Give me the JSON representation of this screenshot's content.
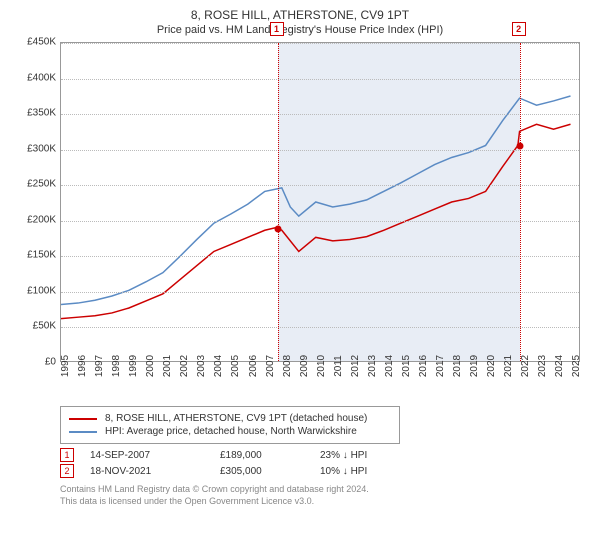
{
  "title": "8, ROSE HILL, ATHERSTONE, CV9 1PT",
  "subtitle": "Price paid vs. HM Land Registry's House Price Index (HPI)",
  "chart": {
    "type": "line",
    "background_color": "#ffffff",
    "shade_color": "#e8edf5",
    "grid_color": "#bbbbbb",
    "border_color": "#999999",
    "xlim": [
      1995,
      2025.5
    ],
    "ylim": [
      0,
      450000
    ],
    "ytick_step": 50000,
    "ytick_labels": [
      "£0",
      "£50K",
      "£100K",
      "£150K",
      "£200K",
      "£250K",
      "£300K",
      "£350K",
      "£400K",
      "£450K"
    ],
    "xticks": [
      1995,
      1996,
      1997,
      1998,
      1999,
      2000,
      2001,
      2002,
      2003,
      2004,
      2005,
      2006,
      2007,
      2008,
      2009,
      2010,
      2011,
      2012,
      2013,
      2014,
      2015,
      2016,
      2017,
      2018,
      2019,
      2020,
      2021,
      2022,
      2023,
      2024,
      2025
    ],
    "shade_start": 2007.7,
    "shade_end": 2021.9,
    "series": [
      {
        "name": "property",
        "label": "8, ROSE HILL, ATHERSTONE, CV9 1PT (detached house)",
        "color": "#cc0000",
        "line_width": 1.5,
        "data": [
          [
            1995,
            60000
          ],
          [
            1996,
            62000
          ],
          [
            1997,
            64000
          ],
          [
            1998,
            68000
          ],
          [
            1999,
            75000
          ],
          [
            2000,
            85000
          ],
          [
            2001,
            95000
          ],
          [
            2002,
            115000
          ],
          [
            2003,
            135000
          ],
          [
            2004,
            155000
          ],
          [
            2005,
            165000
          ],
          [
            2006,
            175000
          ],
          [
            2007,
            185000
          ],
          [
            2007.7,
            189000
          ],
          [
            2008,
            185000
          ],
          [
            2009,
            155000
          ],
          [
            2010,
            175000
          ],
          [
            2011,
            170000
          ],
          [
            2012,
            172000
          ],
          [
            2013,
            176000
          ],
          [
            2014,
            185000
          ],
          [
            2015,
            195000
          ],
          [
            2016,
            205000
          ],
          [
            2017,
            215000
          ],
          [
            2018,
            225000
          ],
          [
            2019,
            230000
          ],
          [
            2020,
            240000
          ],
          [
            2021,
            275000
          ],
          [
            2021.9,
            305000
          ],
          [
            2022,
            325000
          ],
          [
            2023,
            335000
          ],
          [
            2024,
            328000
          ],
          [
            2025,
            335000
          ]
        ]
      },
      {
        "name": "hpi",
        "label": "HPI: Average price, detached house, North Warwickshire",
        "color": "#5b8bc4",
        "line_width": 1.5,
        "data": [
          [
            1995,
            80000
          ],
          [
            1996,
            82000
          ],
          [
            1997,
            86000
          ],
          [
            1998,
            92000
          ],
          [
            1999,
            100000
          ],
          [
            2000,
            112000
          ],
          [
            2001,
            125000
          ],
          [
            2002,
            148000
          ],
          [
            2003,
            172000
          ],
          [
            2004,
            195000
          ],
          [
            2005,
            208000
          ],
          [
            2006,
            222000
          ],
          [
            2007,
            240000
          ],
          [
            2008,
            245000
          ],
          [
            2008.5,
            218000
          ],
          [
            2009,
            205000
          ],
          [
            2010,
            225000
          ],
          [
            2011,
            218000
          ],
          [
            2012,
            222000
          ],
          [
            2013,
            228000
          ],
          [
            2014,
            240000
          ],
          [
            2015,
            252000
          ],
          [
            2016,
            265000
          ],
          [
            2017,
            278000
          ],
          [
            2018,
            288000
          ],
          [
            2019,
            295000
          ],
          [
            2020,
            305000
          ],
          [
            2021,
            340000
          ],
          [
            2022,
            372000
          ],
          [
            2023,
            362000
          ],
          [
            2024,
            368000
          ],
          [
            2025,
            375000
          ]
        ]
      }
    ],
    "markers": [
      {
        "n": "1",
        "x": 2007.7,
        "y": 189000
      },
      {
        "n": "2",
        "x": 2021.9,
        "y": 305000
      }
    ]
  },
  "legend": {
    "s1_label": "8, ROSE HILL, ATHERSTONE, CV9 1PT (detached house)",
    "s2_label": "HPI: Average price, detached house, North Warwickshire"
  },
  "transactions": [
    {
      "n": "1",
      "date": "14-SEP-2007",
      "price": "£189,000",
      "delta": "23% ↓ HPI"
    },
    {
      "n": "2",
      "date": "18-NOV-2021",
      "price": "£305,000",
      "delta": "10% ↓ HPI"
    }
  ],
  "footer": {
    "line1": "Contains HM Land Registry data © Crown copyright and database right 2024.",
    "line2": "This data is licensed under the Open Government Licence v3.0."
  }
}
